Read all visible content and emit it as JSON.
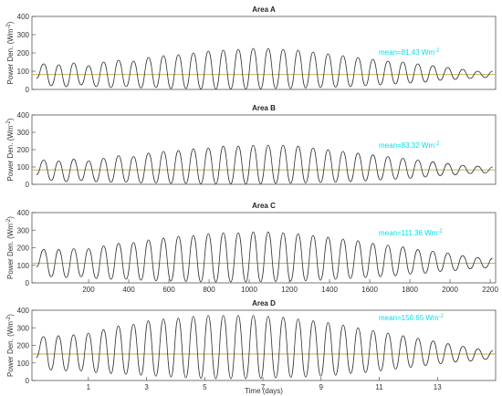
{
  "chart_data": [
    {
      "type": "line",
      "title": "Area A",
      "ylabel": [
        "Power Den. (Wm",
        "-2",
        ")"
      ],
      "color": "#333333",
      "xlim": [
        -82,
        2227
      ],
      "ylim": [
        0,
        400
      ],
      "yticks": [
        0,
        100,
        200,
        300,
        400
      ],
      "x": [
        -60,
        -23,
        14,
        51.5,
        89,
        126,
        163,
        200.5,
        238,
        275,
        312,
        349.5,
        387,
        424,
        461,
        498.5,
        536,
        573,
        610,
        647.5,
        685,
        722,
        759,
        796.5,
        834,
        871,
        908,
        945.5,
        983,
        1020,
        1057,
        1094.5,
        1132,
        1169,
        1206,
        1243.5,
        1281,
        1318,
        1355,
        1392.5,
        1430,
        1467,
        1504,
        1541.5,
        1579,
        1616,
        1653,
        1690.5,
        1728,
        1765,
        1802,
        1839.5,
        1877,
        1914,
        1951,
        1988.5,
        2026,
        2063,
        2100,
        2137.5,
        2175,
        2212
      ],
      "values": [
        60,
        140,
        20,
        135,
        15,
        145,
        25,
        130,
        15,
        150,
        10,
        160,
        15,
        155,
        8,
        175,
        10,
        185,
        5,
        190,
        5,
        200,
        3,
        210,
        2,
        215,
        3,
        220,
        2,
        225,
        3,
        225,
        5,
        220,
        5,
        215,
        8,
        205,
        10,
        195,
        12,
        185,
        15,
        175,
        20,
        165,
        25,
        155,
        30,
        150,
        35,
        140,
        40,
        130,
        50,
        120,
        55,
        110,
        60,
        100,
        65,
        100
      ],
      "mean": {
        "value": 81.43,
        "label": "mean=81.43 Wm",
        "sup": "-2",
        "color": "#b9a845",
        "label_color": "#00e0e8"
      }
    },
    {
      "type": "line",
      "title": "Area B",
      "ylabel": [
        "Power Den. (Wm",
        "-2",
        ")"
      ],
      "color": "#333333",
      "xlim": [
        -82,
        2227
      ],
      "ylim": [
        0,
        400
      ],
      "yticks": [
        0,
        100,
        200,
        300,
        400
      ],
      "x": [
        -60,
        -23,
        14,
        51.5,
        89,
        126,
        163,
        200.5,
        238,
        275,
        312,
        349.5,
        387,
        424,
        461,
        498.5,
        536,
        573,
        610,
        647.5,
        685,
        722,
        759,
        796.5,
        834,
        871,
        908,
        945.5,
        983,
        1020,
        1057,
        1094.5,
        1132,
        1169,
        1206,
        1243.5,
        1281,
        1318,
        1355,
        1392.5,
        1430,
        1467,
        1504,
        1541.5,
        1579,
        1616,
        1653,
        1690.5,
        1728,
        1765,
        1802,
        1839.5,
        1877,
        1914,
        1951,
        1988.5,
        2026,
        2063,
        2100,
        2137.5,
        2175,
        2212
      ],
      "values": [
        55,
        140,
        22,
        135,
        15,
        145,
        22,
        135,
        15,
        150,
        12,
        165,
        12,
        160,
        8,
        180,
        8,
        190,
        5,
        195,
        5,
        205,
        3,
        210,
        3,
        220,
        3,
        220,
        2,
        225,
        3,
        225,
        5,
        225,
        6,
        220,
        8,
        210,
        10,
        200,
        12,
        190,
        15,
        180,
        20,
        170,
        25,
        160,
        30,
        150,
        35,
        140,
        42,
        130,
        50,
        120,
        55,
        110,
        62,
        105,
        65,
        100
      ],
      "mean": {
        "value": 83.32,
        "label": "mean=83.32 Wm",
        "sup": "-2",
        "color": "#b9a845",
        "label_color": "#00e0e8"
      }
    },
    {
      "type": "line",
      "title": "Area C",
      "ylabel": [
        "Power Den. (Wm",
        "-2",
        ")"
      ],
      "color": "#333333",
      "xlim": [
        -82,
        2227
      ],
      "ylim": [
        0,
        400
      ],
      "yticks": [
        0,
        100,
        200,
        300,
        400
      ],
      "xticks": [
        200,
        400,
        600,
        800,
        1000,
        1200,
        1400,
        1600,
        1800,
        2000,
        2200
      ],
      "x": [
        -60,
        -23,
        14,
        51.5,
        89,
        126,
        163,
        200.5,
        238,
        275,
        312,
        349.5,
        387,
        424,
        461,
        498.5,
        536,
        573,
        610,
        647.5,
        685,
        722,
        759,
        796.5,
        834,
        871,
        908,
        945.5,
        983,
        1020,
        1057,
        1094.5,
        1132,
        1169,
        1206,
        1243.5,
        1281,
        1318,
        1355,
        1392.5,
        1430,
        1467,
        1504,
        1541.5,
        1579,
        1616,
        1653,
        1690.5,
        1728,
        1765,
        1802,
        1839.5,
        1877,
        1914,
        1951,
        1988.5,
        2026,
        2063,
        2100,
        2137.5,
        2175,
        2212
      ],
      "values": [
        90,
        190,
        35,
        190,
        30,
        195,
        35,
        195,
        25,
        210,
        20,
        225,
        20,
        230,
        15,
        245,
        12,
        255,
        10,
        265,
        8,
        270,
        6,
        280,
        5,
        285,
        5,
        285,
        5,
        290,
        6,
        290,
        8,
        285,
        10,
        280,
        12,
        270,
        15,
        260,
        20,
        250,
        25,
        240,
        30,
        225,
        35,
        215,
        40,
        205,
        50,
        190,
        55,
        180,
        65,
        170,
        70,
        155,
        80,
        145,
        85,
        140
      ],
      "mean": {
        "value": 111.36,
        "label": "mean=111.36 Wm",
        "sup": "-2",
        "color": "#b9a845",
        "label_color": "#00e0e8"
      }
    },
    {
      "type": "line",
      "title": "Area D",
      "ylabel": [
        "Power Den. (Wm",
        "-2",
        ")"
      ],
      "xlabel": "Time (days)",
      "color": "#333333",
      "xlim": [
        -0.94,
        15.0
      ],
      "ylim": [
        0,
        400
      ],
      "yticks": [
        0,
        100,
        200,
        300,
        400
      ],
      "xticks": [
        1,
        3,
        5,
        7,
        9,
        11,
        13
      ],
      "x": [
        -0.8,
        -0.54,
        -0.29,
        -0.03,
        0.23,
        0.49,
        0.75,
        1.0,
        1.26,
        1.52,
        1.78,
        2.03,
        2.29,
        2.55,
        2.81,
        3.06,
        3.32,
        3.58,
        3.84,
        4.09,
        4.35,
        4.61,
        4.87,
        5.12,
        5.38,
        5.64,
        5.9,
        6.15,
        6.41,
        6.67,
        6.93,
        7.18,
        7.44,
        7.7,
        7.96,
        8.21,
        8.47,
        8.73,
        8.99,
        9.24,
        9.5,
        9.76,
        10.02,
        10.27,
        10.53,
        10.79,
        11.05,
        11.3,
        11.56,
        11.82,
        12.08,
        12.33,
        12.59,
        12.85,
        13.11,
        13.36,
        13.62,
        13.88,
        14.14,
        14.39,
        14.65,
        14.91
      ],
      "values": [
        130,
        250,
        60,
        255,
        55,
        260,
        55,
        270,
        45,
        290,
        40,
        310,
        35,
        320,
        30,
        340,
        25,
        350,
        20,
        355,
        15,
        365,
        12,
        370,
        10,
        370,
        10,
        370,
        10,
        370,
        12,
        365,
        15,
        360,
        18,
        350,
        20,
        340,
        25,
        330,
        30,
        315,
        40,
        300,
        45,
        285,
        55,
        270,
        65,
        255,
        75,
        240,
        85,
        225,
        95,
        210,
        105,
        195,
        110,
        180,
        120,
        170
      ],
      "mean": {
        "value": 150.65,
        "label": "mean=150.65 Wm",
        "sup": "-2",
        "color": "#b9a845",
        "label_color": "#00e0e8"
      }
    }
  ]
}
